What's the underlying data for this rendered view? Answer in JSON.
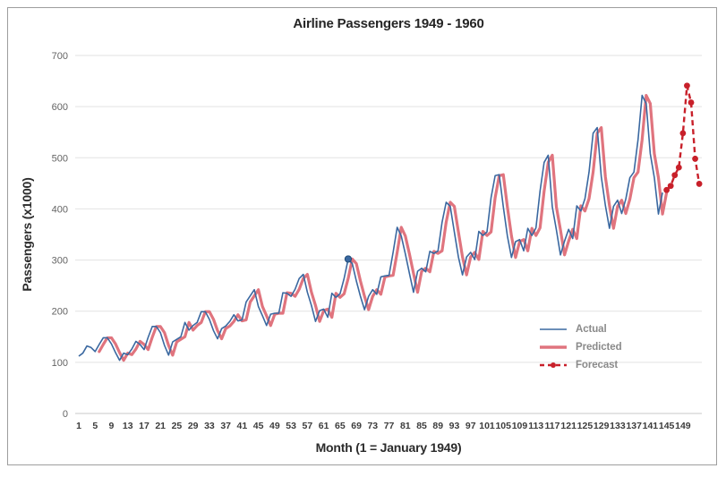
{
  "window": {
    "background": "#ffffff",
    "border_color": "#9e9e9e"
  },
  "chart_data": {
    "type": "line",
    "title": "Airline Passengers 1949 - 1960",
    "xlabel": "Month (1 = January 1949)",
    "ylabel": "Passengers (x1000)",
    "xlim": [
      1,
      154
    ],
    "ylim": [
      0,
      700
    ],
    "grid": "horizontal",
    "legend_position": "inside-bottom-right",
    "y_ticks": [
      0,
      100,
      200,
      300,
      400,
      500,
      600,
      700
    ],
    "x_ticks": [
      1,
      5,
      9,
      13,
      17,
      21,
      25,
      29,
      33,
      37,
      41,
      45,
      49,
      53,
      57,
      61,
      65,
      69,
      73,
      77,
      81,
      85,
      89,
      93,
      97,
      101,
      105,
      109,
      113,
      117,
      121,
      125,
      129,
      133,
      137,
      141,
      145,
      149
    ],
    "series": [
      {
        "name": "Actual",
        "color": "#3a68a0",
        "style": "solid",
        "width": 1.6,
        "start_month": 1,
        "values": [
          112,
          118,
          132,
          129,
          121,
          135,
          148,
          148,
          136,
          119,
          104,
          118,
          115,
          126,
          141,
          135,
          125,
          149,
          170,
          170,
          158,
          133,
          114,
          140,
          145,
          150,
          178,
          163,
          172,
          178,
          199,
          199,
          184,
          162,
          146,
          166,
          171,
          180,
          193,
          181,
          183,
          218,
          230,
          242,
          209,
          191,
          172,
          194,
          196,
          196,
          236,
          235,
          229,
          243,
          264,
          272,
          237,
          211,
          180,
          201,
          204,
          188,
          235,
          227,
          234,
          264,
          302,
          293,
          259,
          229,
          203,
          229,
          242,
          233,
          267,
          269,
          270,
          315,
          364,
          347,
          312,
          274,
          237,
          278,
          284,
          277,
          317,
          313,
          318,
          374,
          413,
          405,
          355,
          306,
          271,
          306,
          315,
          301,
          356,
          348,
          355,
          422,
          465,
          467,
          404,
          347,
          305,
          336,
          340,
          318,
          362,
          348,
          363,
          435,
          491,
          505,
          404,
          359,
          310,
          337,
          360,
          342,
          406,
          396,
          420,
          472,
          548,
          559,
          463,
          407,
          362,
          405,
          417,
          391,
          419,
          461,
          472,
          535,
          622,
          606,
          508,
          461,
          390,
          432
        ]
      },
      {
        "name": "Predicted",
        "color": "#e0747e",
        "style": "solid",
        "width": 3.2,
        "start_month": 6,
        "values": [
          121,
          135,
          148,
          148,
          136,
          119,
          104,
          118,
          115,
          126,
          141,
          135,
          125,
          149,
          170,
          170,
          158,
          133,
          114,
          140,
          145,
          150,
          178,
          163,
          172,
          178,
          199,
          199,
          184,
          162,
          146,
          166,
          171,
          180,
          193,
          181,
          183,
          218,
          230,
          242,
          209,
          191,
          172,
          194,
          196,
          196,
          236,
          235,
          229,
          243,
          264,
          272,
          237,
          211,
          180,
          201,
          204,
          188,
          235,
          227,
          234,
          264,
          302,
          293,
          259,
          229,
          203,
          229,
          242,
          233,
          267,
          269,
          270,
          315,
          364,
          347,
          312,
          274,
          237,
          278,
          284,
          277,
          317,
          313,
          318,
          374,
          413,
          405,
          355,
          306,
          271,
          306,
          315,
          301,
          356,
          348,
          355,
          422,
          465,
          467,
          404,
          347,
          305,
          336,
          340,
          318,
          362,
          348,
          363,
          435,
          491,
          505,
          404,
          359,
          310,
          337,
          360,
          342,
          406,
          396,
          420,
          472,
          548,
          559,
          463,
          407,
          362,
          405,
          417,
          391,
          419,
          461,
          472,
          535,
          622,
          606,
          508,
          461,
          390,
          432
        ]
      },
      {
        "name": "Forecast",
        "color": "#c8202a",
        "style": "dashed",
        "width": 2.4,
        "markers": true,
        "start_month": 145,
        "values": [
          437,
          445,
          466,
          481,
          548,
          641,
          608,
          498,
          449
        ]
      }
    ],
    "highlight_point": {
      "series": "Actual",
      "month": 67,
      "value": 302
    }
  }
}
